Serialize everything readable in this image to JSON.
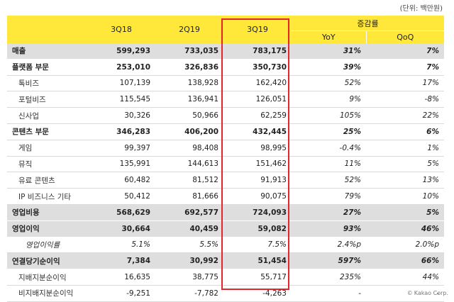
{
  "unit_note": "(단위: 백만원)",
  "header": {
    "col1": "3Q18",
    "col2": "2Q19",
    "col3": "3Q19",
    "change_group": "증감률",
    "yoy": "YoY",
    "qoq": "QoQ"
  },
  "rows": [
    {
      "label": "매출",
      "v1": "599,293",
      "v2": "733,035",
      "v3": "783,175",
      "yoy": "31%",
      "qoq": "7%"
    },
    {
      "label": "플랫폼 부문",
      "v1": "253,010",
      "v2": "326,836",
      "v3": "350,730",
      "yoy": "39%",
      "qoq": "7%"
    },
    {
      "label": "톡비즈",
      "v1": "107,139",
      "v2": "138,928",
      "v3": "162,420",
      "yoy": "52%",
      "qoq": "17%"
    },
    {
      "label": "포털비즈",
      "v1": "115,545",
      "v2": "136,941",
      "v3": "126,051",
      "yoy": "9%",
      "qoq": "-8%"
    },
    {
      "label": "신사업",
      "v1": "30,326",
      "v2": "50,966",
      "v3": "62,259",
      "yoy": "105%",
      "qoq": "22%"
    },
    {
      "label": "콘텐츠 부문",
      "v1": "346,283",
      "v2": "406,200",
      "v3": "432,445",
      "yoy": "25%",
      "qoq": "6%"
    },
    {
      "label": "게임",
      "v1": "99,397",
      "v2": "98,408",
      "v3": "98,995",
      "yoy": "-0.4%",
      "qoq": "1%"
    },
    {
      "label": "뮤직",
      "v1": "135,991",
      "v2": "144,613",
      "v3": "151,462",
      "yoy": "11%",
      "qoq": "5%"
    },
    {
      "label": "유료 콘텐츠",
      "v1": "60,482",
      "v2": "81,512",
      "v3": "91,913",
      "yoy": "52%",
      "qoq": "13%"
    },
    {
      "label": "IP 비즈니스 기타",
      "v1": "50,412",
      "v2": "81,666",
      "v3": "90,075",
      "yoy": "79%",
      "qoq": "10%"
    },
    {
      "label": "영업비용",
      "v1": "568,629",
      "v2": "692,577",
      "v3": "724,093",
      "yoy": "27%",
      "qoq": "5%"
    },
    {
      "label": "영업이익",
      "v1": "30,664",
      "v2": "40,459",
      "v3": "59,082",
      "yoy": "93%",
      "qoq": "46%"
    },
    {
      "label": "영업이익률",
      "v1": "5.1%",
      "v2": "5.5%",
      "v3": "7.5%",
      "yoy": "2.4%p",
      "qoq": "2.0%p"
    },
    {
      "label": "연결당기순이익",
      "v1": "7,384",
      "v2": "30,992",
      "v3": "51,454",
      "yoy": "597%",
      "qoq": "66%"
    },
    {
      "label": "지배지분순이익",
      "v1": "16,635",
      "v2": "38,775",
      "v3": "55,717",
      "yoy": "235%",
      "qoq": "44%"
    },
    {
      "label": "비지배지분순이익",
      "v1": "-9,251",
      "v2": "-7,782",
      "v3": "-4,263",
      "yoy": "-",
      "qoq": "-"
    }
  ],
  "footer": {
    "copyright_symbol": "©",
    "brand": "Kakao Corp."
  },
  "colors": {
    "header_yellow": "#ffe83a",
    "row_gray": "#dedede",
    "highlight_red": "#e4262c"
  }
}
